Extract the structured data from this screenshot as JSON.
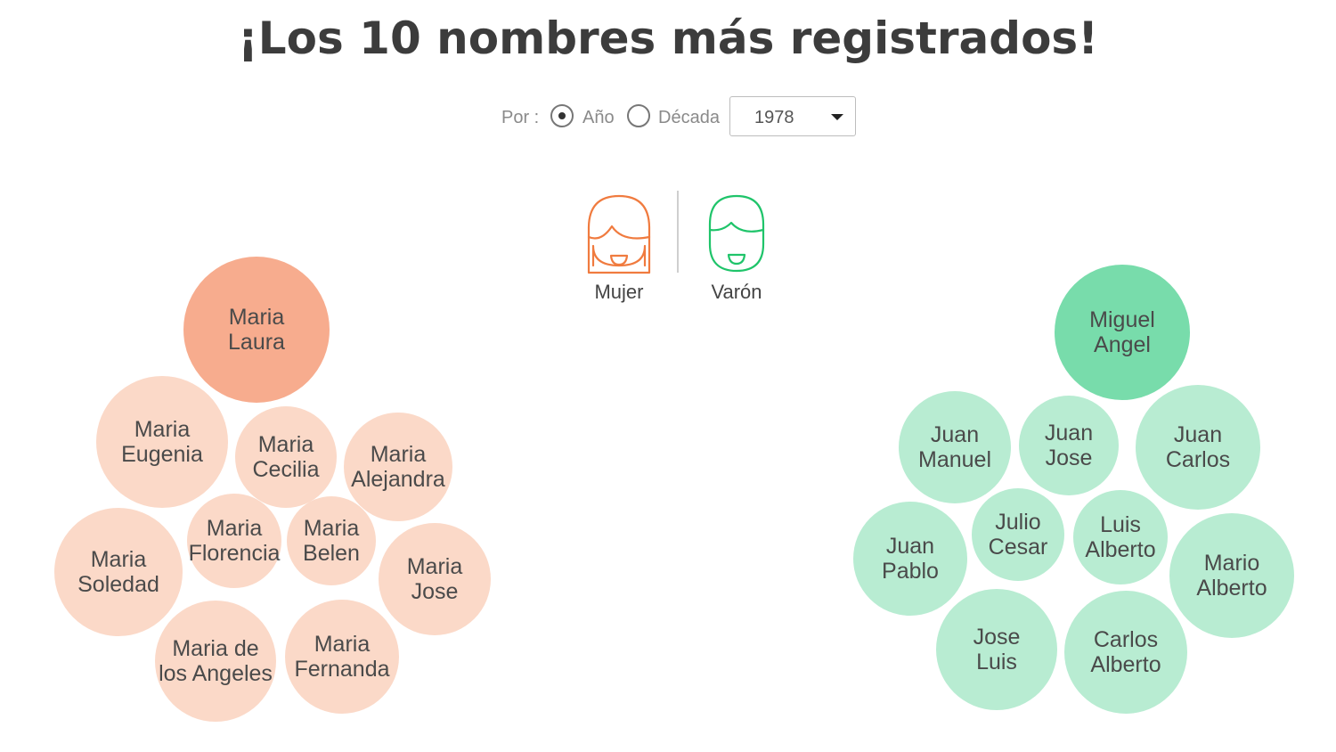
{
  "title": "¡Los 10 nombres más registrados!",
  "controls": {
    "por_label": "Por :",
    "options": [
      {
        "label": "Año",
        "selected": true
      },
      {
        "label": "Década",
        "selected": false
      }
    ],
    "select": {
      "value": "1978"
    }
  },
  "legend": {
    "female": {
      "label": "Mujer",
      "icon": "girl-face-icon",
      "color": "#f07b3f"
    },
    "male": {
      "label": "Varón",
      "icon": "boy-face-icon",
      "color": "#1fc46a"
    }
  },
  "colors": {
    "female_top": "#f7ac8e",
    "female_rest": "#fbd9c8",
    "male_top": "#78dcab",
    "male_rest": "#b8ecd2"
  },
  "female_names": [
    "Maria Laura",
    "Maria Eugenia",
    "Maria Cecilia",
    "Maria Alejandra",
    "Maria Soledad",
    "Maria Florencia",
    "Maria Belen",
    "Maria Jose",
    "Maria de los Angeles",
    "Maria Fernanda"
  ],
  "male_names": [
    "Miguel Angel",
    "Juan Manuel",
    "Juan Jose",
    "Juan Carlos",
    "Juan Pablo",
    "Julio Cesar",
    "Luis Alberto",
    "Mario Alberto",
    "Jose Luis",
    "Carlos Alberto"
  ]
}
